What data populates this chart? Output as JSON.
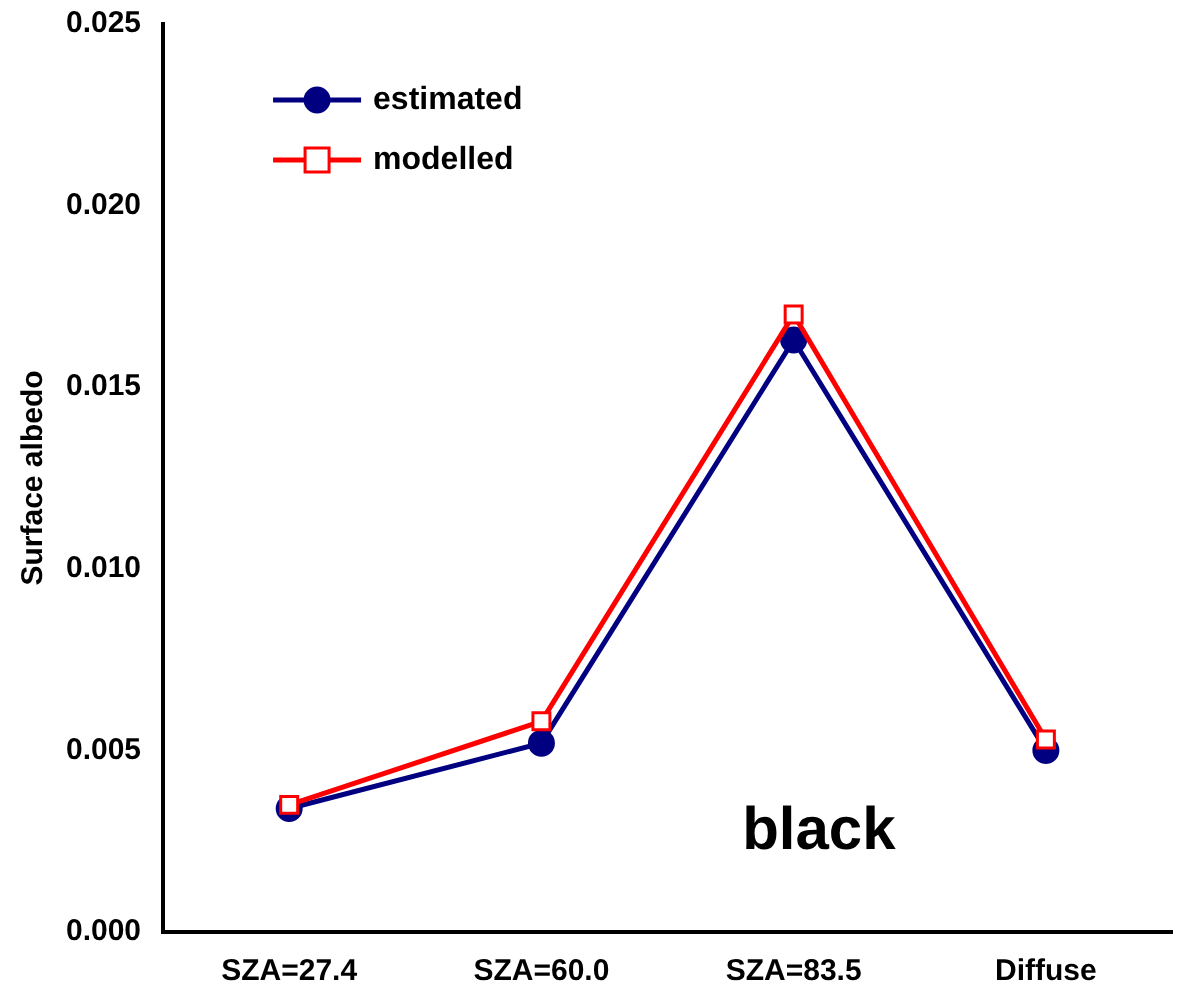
{
  "chart_data": {
    "type": "line",
    "ylabel": "Surface albedo",
    "categories": [
      "SZA=27.4",
      "SZA=60.0",
      "SZA=83.5",
      "Diffuse"
    ],
    "series": [
      {
        "name": "estimated",
        "color": "#000080",
        "marker": "circle",
        "values": [
          0.0034,
          0.0052,
          0.0163,
          0.005
        ]
      },
      {
        "name": "modelled",
        "color": "#ff0000",
        "marker": "square",
        "values": [
          0.0035,
          0.0058,
          0.017,
          0.0053
        ]
      }
    ],
    "ylim": [
      0,
      0.025
    ],
    "yticks": [
      {
        "value": 0,
        "label": "0.000"
      },
      {
        "value": 0.005,
        "label": "0.005"
      },
      {
        "value": 0.01,
        "label": "0.010"
      },
      {
        "value": 0.015,
        "label": "0.015"
      },
      {
        "value": 0.02,
        "label": "0.020"
      },
      {
        "value": 0.025,
        "label": "0.025"
      }
    ],
    "grid": false,
    "legend": "top left",
    "line_style": "solid",
    "annotations": [
      "black"
    ]
  }
}
